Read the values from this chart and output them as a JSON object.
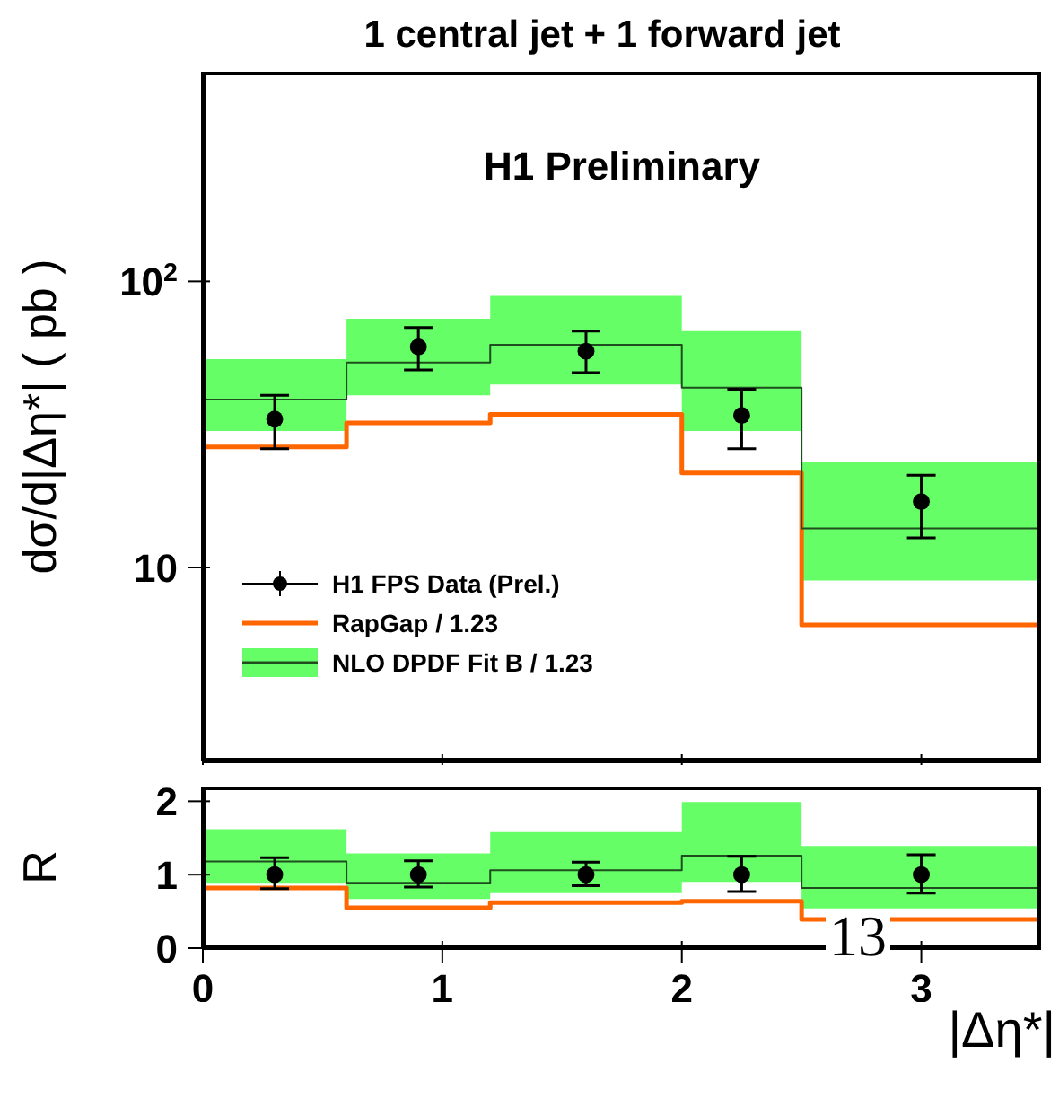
{
  "chart_data": [
    {
      "type": "step",
      "title": "1 central jet + 1 forward jet",
      "ylabel": "dσ/d|Δη*| ( pb )",
      "annotations": [
        "H1 Preliminary"
      ],
      "log": "y",
      "legend": "bottom left",
      "tick_labels": "y",
      "line_style": "solid",
      "xlim": [
        0,
        3.5
      ],
      "xticks": [
        0,
        1,
        2,
        3
      ],
      "ylim": [
        2.1,
        540
      ],
      "yticks": [
        {
          "value": 10,
          "label": "10"
        },
        {
          "value": 100,
          "label": "10$^{2}$"
        }
      ],
      "series": [
        {
          "name": "H1 FPS Data (Prel.)",
          "type": "scatter",
          "marker": "circle",
          "color": "#000000",
          "x": [
            0.3,
            0.9,
            1.6,
            2.25,
            3.0
          ],
          "values": [
            33,
            59,
            57,
            34,
            17
          ],
          "errors": [
            [
              26,
              40
            ],
            [
              49,
              69
            ],
            [
              48,
              67
            ],
            [
              26,
              42
            ],
            [
              12.7,
              21
            ]
          ]
        },
        {
          "name": "RapGap / 1.23",
          "marker": "none",
          "color": "#ff6600",
          "x": [
            0,
            0.6,
            1.2,
            2,
            2.5,
            3.5
          ],
          "values": [
            26.4,
            32,
            34.3,
            21.4,
            6.3,
            6.3
          ]
        },
        {
          "name": "NLO DPDF Fit B / 1.23",
          "marker": "none",
          "color": "#1f4d1f",
          "x": [
            0,
            0.6,
            1.2,
            2,
            2.5,
            3.5
          ],
          "values": [
            38.6,
            52,
            60,
            42.5,
            13.7,
            13.7
          ],
          "lower": [
            30,
            40,
            43.6,
            30,
            9.0,
            9.0
          ],
          "upper": [
            53.5,
            74,
            89,
            67,
            23.3,
            23.3
          ]
        }
      ]
    },
    {
      "type": "step",
      "ylabel": "R",
      "xlabel": "|Δη*|",
      "annotations": [
        "13"
      ],
      "line_style": "solid",
      "xlim": [
        0,
        3.5
      ],
      "xticks": [
        0,
        1,
        2,
        3
      ],
      "ylim": [
        0,
        2.2
      ],
      "yticks": [
        0,
        1,
        2
      ],
      "series": [
        {
          "type": "scatter",
          "marker": "circle",
          "color": "#000000",
          "x": [
            0.3,
            0.9,
            1.6,
            2.25,
            3.0
          ],
          "values": [
            1,
            1,
            1,
            1,
            1
          ],
          "errors": [
            [
              0.81,
              1.23
            ],
            [
              0.83,
              1.19
            ],
            [
              0.85,
              1.17
            ],
            [
              0.77,
              1.25
            ],
            [
              0.75,
              1.27
            ]
          ]
        },
        {
          "marker": "none",
          "color": "#ff6600",
          "x": [
            0,
            0.6,
            1.2,
            2,
            2.5,
            3.5
          ],
          "values": [
            0.82,
            0.55,
            0.62,
            0.64,
            0.39,
            0.39
          ]
        },
        {
          "marker": "none",
          "color": "#1f4d1f",
          "x": [
            0,
            0.6,
            1.2,
            2,
            2.5,
            3.5
          ],
          "values": [
            1.18,
            0.89,
            1.06,
            1.26,
            0.82,
            0.82
          ],
          "lower": [
            0.89,
            0.67,
            0.75,
            0.9,
            0.54,
            0.54
          ],
          "upper": [
            1.62,
            1.29,
            1.58,
            1.99,
            1.39,
            1.39
          ]
        }
      ]
    }
  ]
}
